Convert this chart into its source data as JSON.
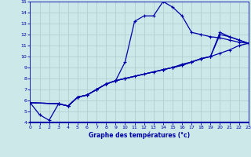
{
  "xlabel": "Graphe des températures (°c)",
  "bg_color": "#cce8e8",
  "grid_color": "#aacccc",
  "line_color": "#0000aa",
  "axis_color": "#0000aa",
  "xlim": [
    0,
    23
  ],
  "ylim": [
    4,
    15
  ],
  "xticks": [
    0,
    1,
    2,
    3,
    4,
    5,
    6,
    7,
    8,
    9,
    10,
    11,
    12,
    13,
    14,
    15,
    16,
    17,
    18,
    19,
    20,
    21,
    22,
    23
  ],
  "yticks": [
    4,
    5,
    6,
    7,
    8,
    9,
    10,
    11,
    12,
    13,
    14,
    15
  ],
  "series": [
    {
      "x": [
        0,
        1,
        2,
        3,
        4,
        5,
        6,
        7,
        8,
        9,
        10,
        11,
        12,
        13,
        14,
        15,
        16,
        17,
        18,
        19,
        20,
        21,
        22,
        23
      ],
      "y": [
        5.8,
        4.7,
        4.2,
        5.7,
        5.5,
        6.3,
        6.5,
        7.0,
        7.5,
        7.8,
        9.5,
        13.2,
        13.7,
        13.7,
        15.0,
        14.5,
        13.7,
        12.2,
        12.0,
        11.8,
        11.7,
        11.5,
        11.3,
        11.2
      ]
    },
    {
      "x": [
        0,
        3,
        4,
        5,
        6,
        7,
        8,
        9,
        10,
        11,
        12,
        13,
        14,
        15,
        16,
        17,
        18,
        19,
        20,
        21,
        22,
        23
      ],
      "y": [
        5.8,
        5.7,
        5.5,
        6.3,
        6.5,
        7.0,
        7.5,
        7.8,
        8.0,
        8.2,
        8.4,
        8.6,
        8.8,
        9.0,
        9.3,
        9.5,
        9.8,
        10.0,
        10.3,
        10.6,
        11.0,
        11.2
      ]
    },
    {
      "x": [
        0,
        3,
        4,
        5,
        6,
        7,
        8,
        9,
        10,
        14,
        15,
        16,
        17,
        18,
        19,
        20,
        21,
        22,
        23
      ],
      "y": [
        5.8,
        5.7,
        5.5,
        6.3,
        6.5,
        7.0,
        7.5,
        7.8,
        8.0,
        8.8,
        9.0,
        9.2,
        9.5,
        9.8,
        10.0,
        12.2,
        11.8,
        11.5,
        11.2
      ]
    },
    {
      "x": [
        0,
        3,
        4,
        5,
        6,
        7,
        8,
        9,
        10,
        14,
        15,
        16,
        17,
        18,
        19,
        20,
        21,
        22,
        23
      ],
      "y": [
        5.8,
        5.7,
        5.5,
        6.3,
        6.5,
        7.0,
        7.5,
        7.8,
        8.0,
        8.8,
        9.0,
        9.2,
        9.5,
        9.8,
        10.0,
        12.0,
        11.8,
        11.5,
        11.2
      ]
    }
  ]
}
